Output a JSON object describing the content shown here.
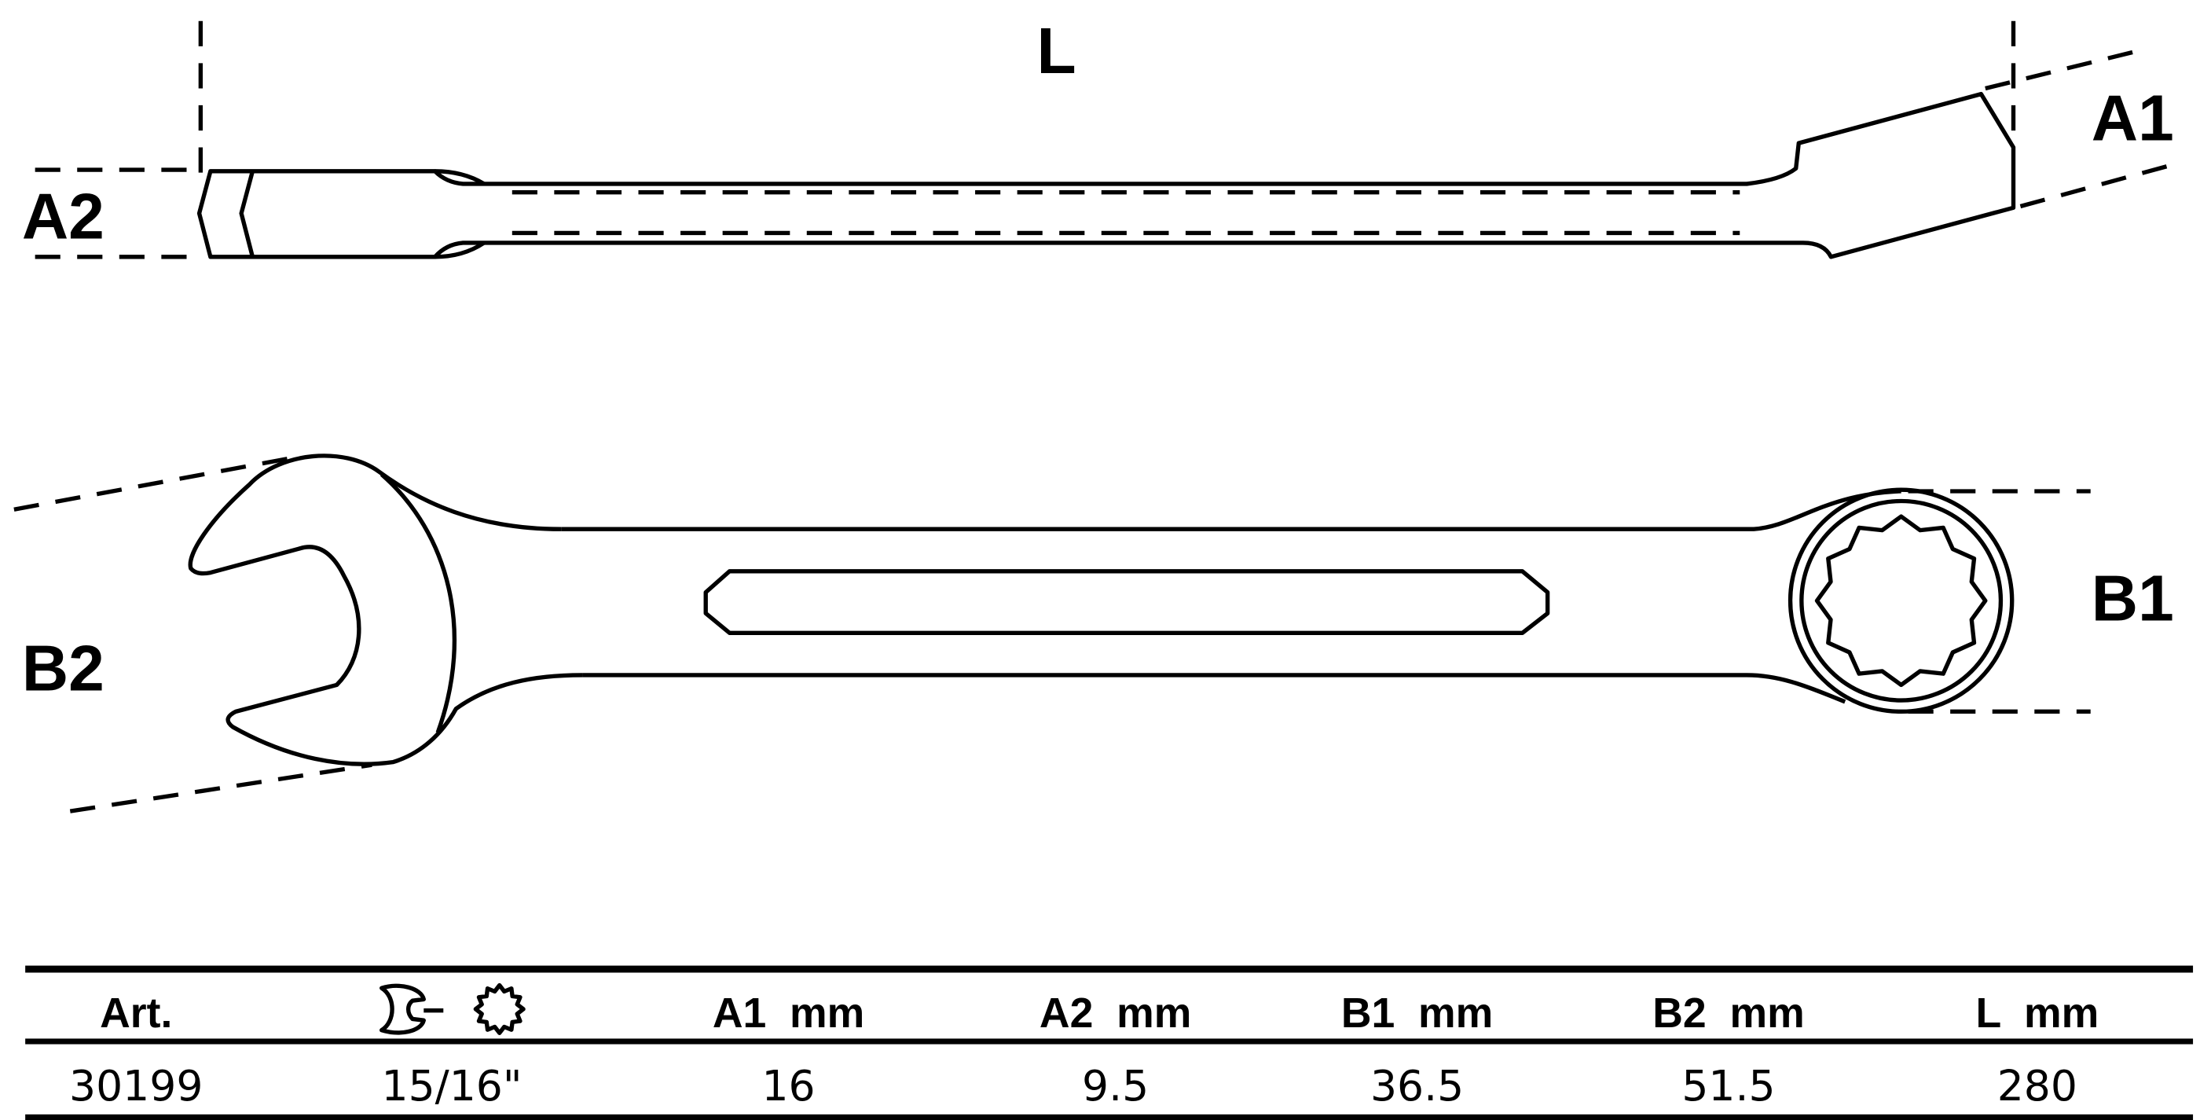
{
  "drawing": {
    "labels": {
      "L": "L",
      "A1": "A1",
      "A2": "A2",
      "B1": "B1",
      "B2": "B2"
    }
  },
  "table": {
    "headers": [
      "Art.",
      "",
      "A1  mm",
      "A2  mm",
      "B1  mm",
      "B2  mm",
      "L  mm"
    ],
    "header_icons": [
      "open-end-wrench-icon",
      "twelve-point-ring-icon"
    ],
    "rows": [
      [
        "30199",
        "15/16\"",
        "16",
        "9.5",
        "36.5",
        "51.5",
        "280"
      ]
    ]
  }
}
